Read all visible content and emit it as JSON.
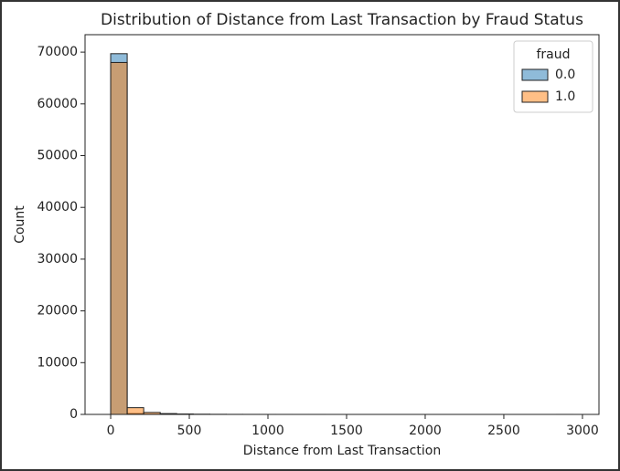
{
  "chart_data": {
    "type": "histogram",
    "title": "Distribution of Distance from Last Transaction by Fraud Status",
    "x_label": "Distance from Last Transaction",
    "y_label": "Count",
    "bins": [
      0,
      105,
      210,
      315,
      420,
      525,
      630,
      735,
      840,
      945,
      1050,
      1155,
      1260,
      1365,
      1470,
      1575,
      1680,
      1785,
      1890,
      1995,
      2100,
      2205,
      2310,
      2415,
      2520,
      2625,
      2730,
      2835,
      2940
    ],
    "series": [
      {
        "name": "0.0",
        "color": "#1f77b4",
        "values": [
          69700,
          150,
          40,
          15,
          8,
          4,
          2,
          1,
          1,
          0,
          0,
          0,
          0,
          0,
          0,
          0,
          0,
          0,
          0,
          0,
          0,
          0,
          0,
          0,
          0,
          0,
          0,
          1
        ]
      },
      {
        "name": "1.0",
        "color": "#ff7f0e",
        "values": [
          68000,
          1300,
          380,
          160,
          80,
          40,
          20,
          10,
          6,
          3,
          2,
          1,
          1,
          0,
          0,
          0,
          0,
          0,
          0,
          0,
          0,
          0,
          0,
          0,
          0,
          0,
          0,
          1
        ]
      }
    ],
    "legend_title": "fraud",
    "legend": "upper right",
    "xlim": [
      -163,
      3105
    ],
    "ylim": [
      0,
      73370
    ],
    "xticks": [
      0,
      500,
      1000,
      1500,
      2000,
      2500,
      3000
    ],
    "yticks": [
      0,
      10000,
      20000,
      30000,
      40000,
      50000,
      60000,
      70000
    ]
  }
}
